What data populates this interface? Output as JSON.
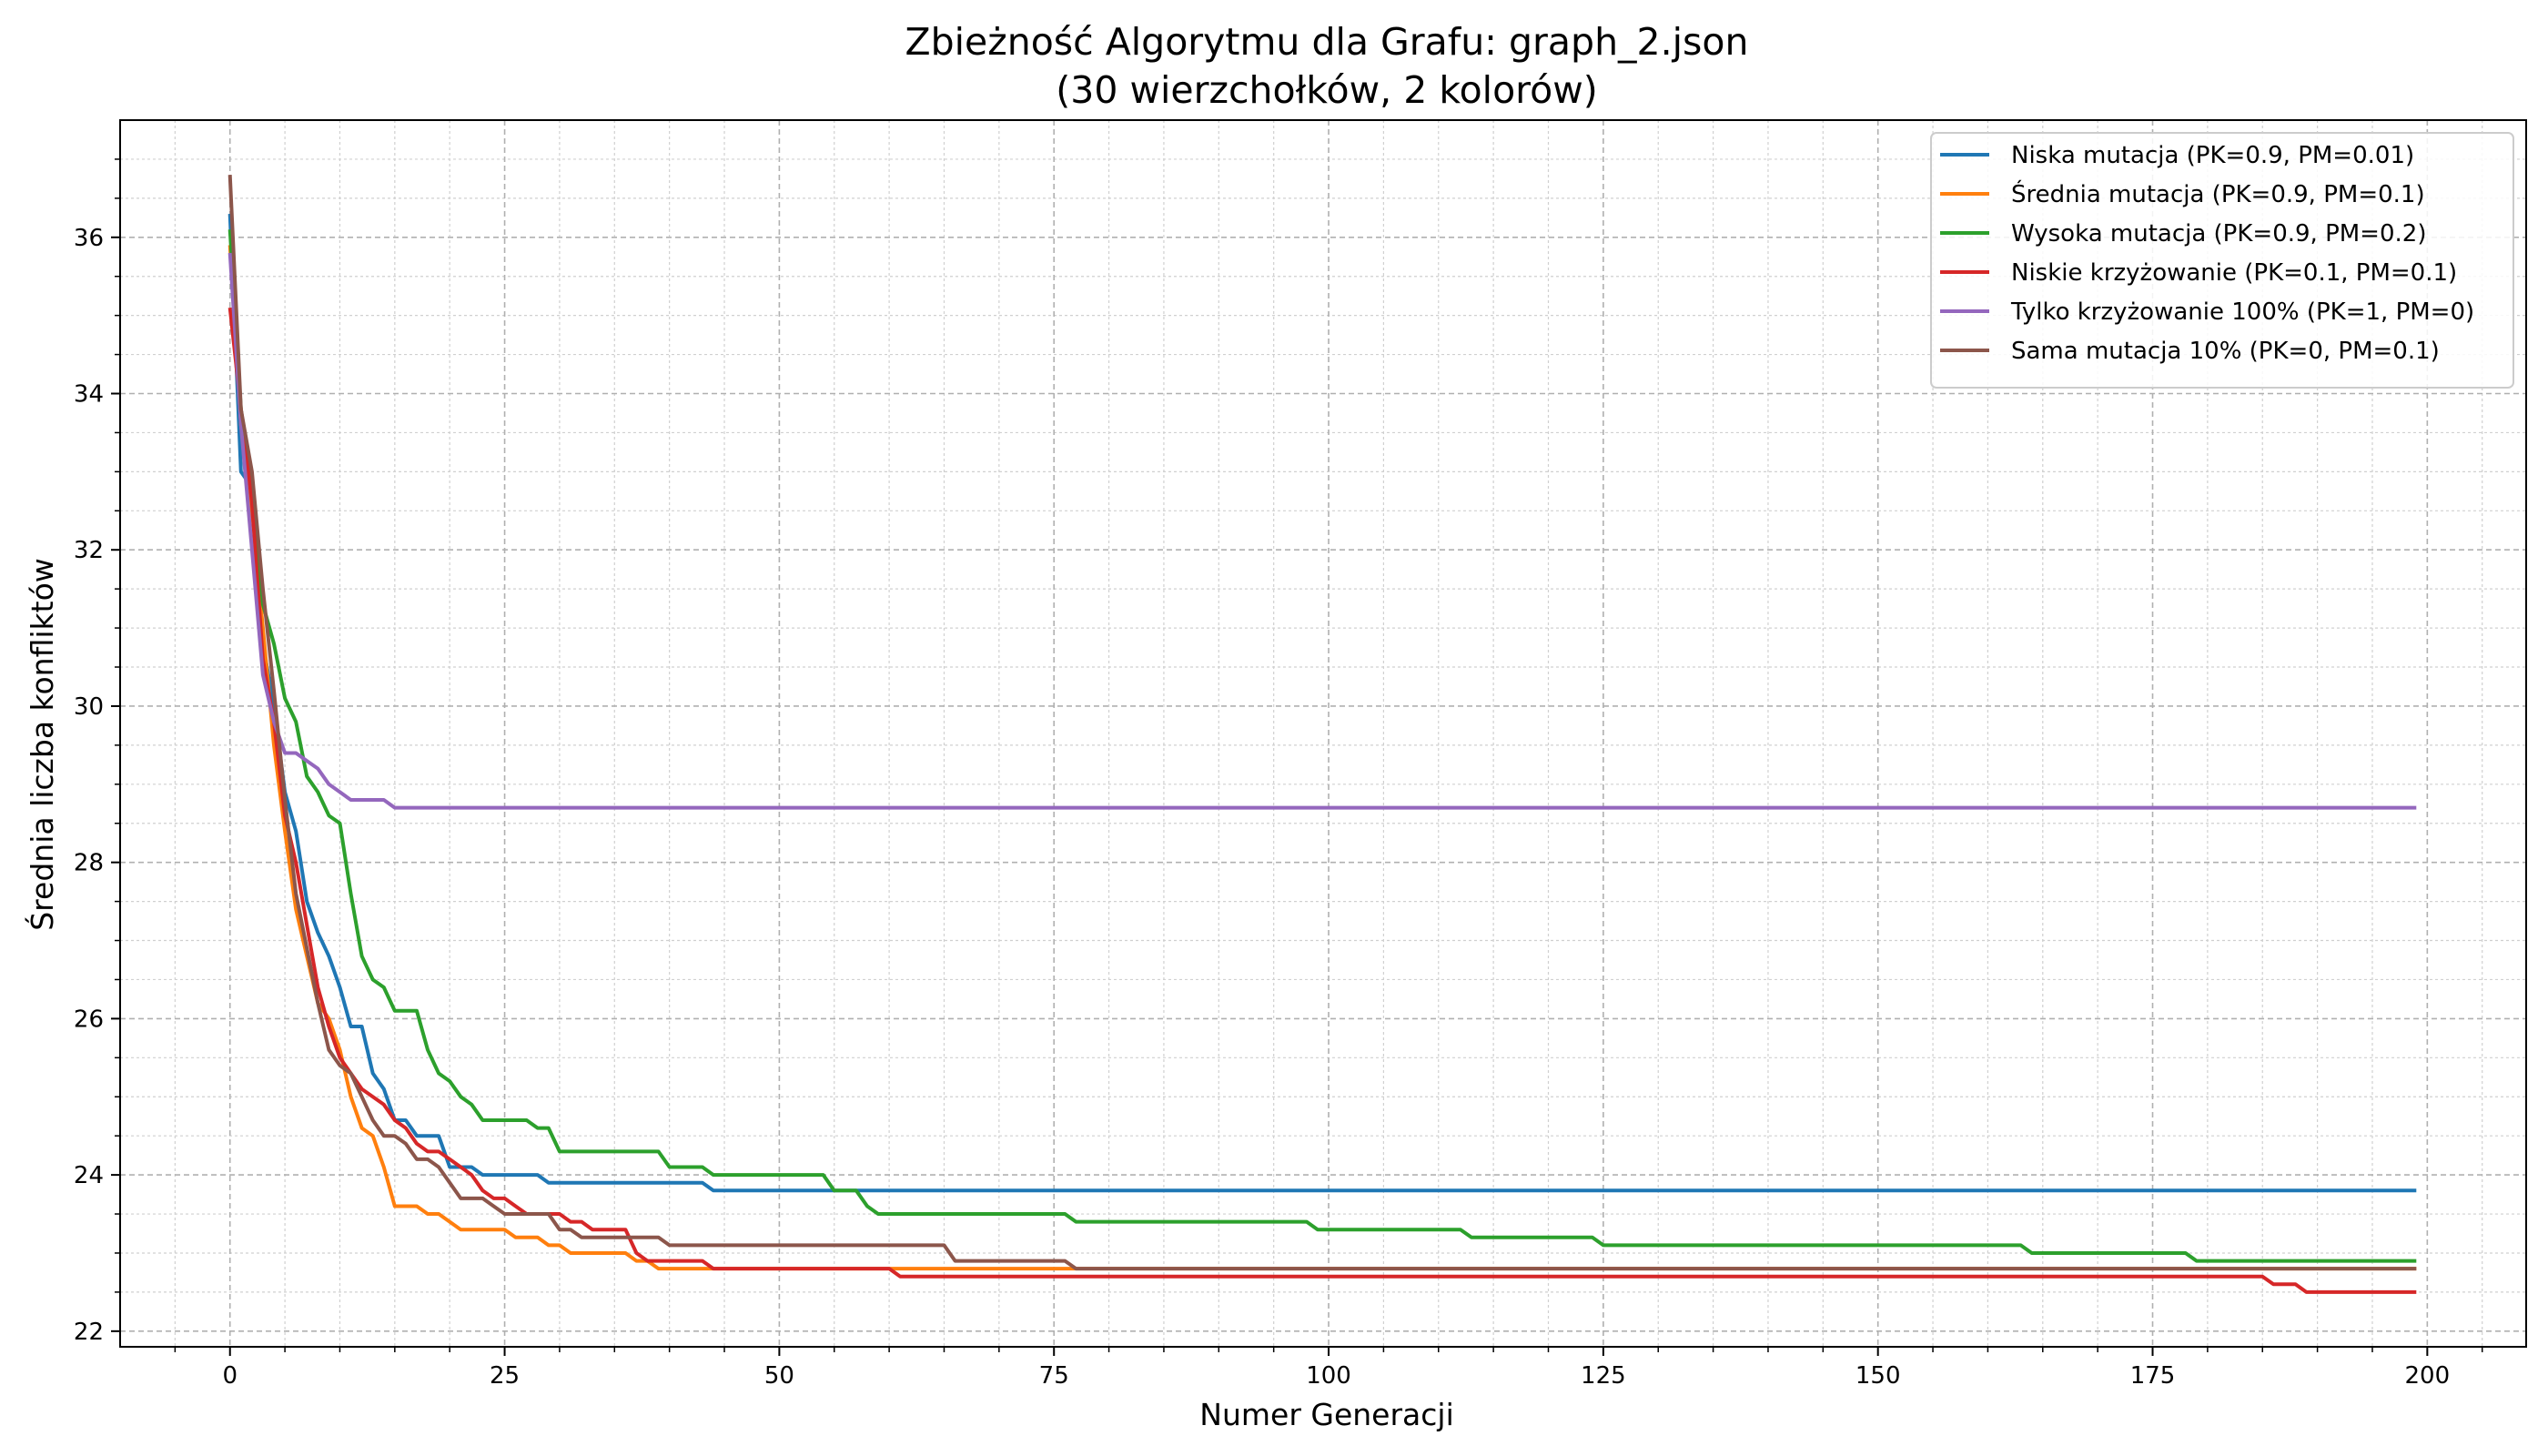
{
  "chart_data": {
    "type": "line",
    "title": "Zbieżność Algorytmu dla Grafu: graph_2.json",
    "subtitle": "(30 wierzchołków, 2 kolorów)",
    "xlabel": "Numer Generacji",
    "ylabel": "Średnia liczba konfliktów",
    "xlim": [
      -10,
      209
    ],
    "ylim": [
      21.8,
      37.5
    ],
    "xticks": [
      0,
      25,
      50,
      75,
      100,
      125,
      150,
      175,
      200
    ],
    "yticks": [
      22,
      24,
      26,
      28,
      30,
      32,
      34,
      36
    ],
    "grid": true,
    "minor_grid": true,
    "legend_position": "top-right",
    "series": [
      {
        "name": "Niska mutacja (PK=0.9, PM=0.01)",
        "color": "#1f77b4",
        "points": [
          [
            0,
            36.3
          ],
          [
            1,
            33.0
          ],
          [
            2,
            32.8
          ],
          [
            3,
            30.8
          ],
          [
            4,
            30.0
          ],
          [
            5,
            28.9
          ],
          [
            6,
            28.4
          ],
          [
            7,
            27.5
          ],
          [
            8,
            27.1
          ],
          [
            9,
            26.8
          ],
          [
            10,
            26.4
          ],
          [
            11,
            25.9
          ],
          [
            12,
            25.9
          ],
          [
            13,
            25.3
          ],
          [
            14,
            25.1
          ],
          [
            15,
            24.7
          ],
          [
            16,
            24.7
          ],
          [
            17,
            24.5
          ],
          [
            18,
            24.5
          ],
          [
            19,
            24.5
          ],
          [
            20,
            24.1
          ],
          [
            21,
            24.1
          ],
          [
            22,
            24.1
          ],
          [
            23,
            24.0
          ],
          [
            28,
            24.0
          ],
          [
            29,
            23.9
          ],
          [
            43,
            23.9
          ],
          [
            44,
            23.8
          ],
          [
            199,
            23.8
          ]
        ]
      },
      {
        "name": "Średnia mutacja (PK=0.9, PM=0.1)",
        "color": "#ff7f0e",
        "points": [
          [
            0,
            35.9
          ],
          [
            1,
            33.6
          ],
          [
            2,
            32.5
          ],
          [
            3,
            31.0
          ],
          [
            4,
            29.5
          ],
          [
            5,
            28.4
          ],
          [
            6,
            27.4
          ],
          [
            7,
            26.8
          ],
          [
            8,
            26.2
          ],
          [
            9,
            26.0
          ],
          [
            10,
            25.6
          ],
          [
            11,
            25.0
          ],
          [
            12,
            24.6
          ],
          [
            13,
            24.5
          ],
          [
            14,
            24.1
          ],
          [
            15,
            23.6
          ],
          [
            17,
            23.6
          ],
          [
            18,
            23.5
          ],
          [
            19,
            23.5
          ],
          [
            20,
            23.4
          ],
          [
            21,
            23.3
          ],
          [
            25,
            23.3
          ],
          [
            26,
            23.2
          ],
          [
            28,
            23.2
          ],
          [
            29,
            23.1
          ],
          [
            30,
            23.1
          ],
          [
            31,
            23.0
          ],
          [
            36,
            23.0
          ],
          [
            37,
            22.9
          ],
          [
            38,
            22.9
          ],
          [
            39,
            22.8
          ],
          [
            199,
            22.8
          ]
        ]
      },
      {
        "name": "Wysoka mutacja (PK=0.9, PM=0.2)",
        "color": "#2ca02c",
        "points": [
          [
            0,
            36.1
          ],
          [
            1,
            33.8
          ],
          [
            2,
            32.8
          ],
          [
            3,
            31.3
          ],
          [
            4,
            30.8
          ],
          [
            5,
            30.1
          ],
          [
            6,
            29.8
          ],
          [
            7,
            29.1
          ],
          [
            8,
            28.9
          ],
          [
            9,
            28.6
          ],
          [
            10,
            28.5
          ],
          [
            11,
            27.6
          ],
          [
            12,
            26.8
          ],
          [
            13,
            26.5
          ],
          [
            14,
            26.4
          ],
          [
            15,
            26.1
          ],
          [
            17,
            26.1
          ],
          [
            18,
            25.6
          ],
          [
            19,
            25.3
          ],
          [
            20,
            25.2
          ],
          [
            21,
            25.0
          ],
          [
            22,
            24.9
          ],
          [
            23,
            24.7
          ],
          [
            27,
            24.7
          ],
          [
            28,
            24.6
          ],
          [
            29,
            24.6
          ],
          [
            30,
            24.3
          ],
          [
            39,
            24.3
          ],
          [
            40,
            24.1
          ],
          [
            43,
            24.1
          ],
          [
            44,
            24.0
          ],
          [
            54,
            24.0
          ],
          [
            55,
            23.8
          ],
          [
            57,
            23.8
          ],
          [
            58,
            23.6
          ],
          [
            59,
            23.5
          ],
          [
            76,
            23.5
          ],
          [
            77,
            23.4
          ],
          [
            98,
            23.4
          ],
          [
            99,
            23.3
          ],
          [
            112,
            23.3
          ],
          [
            113,
            23.2
          ],
          [
            124,
            23.2
          ],
          [
            125,
            23.1
          ],
          [
            163,
            23.1
          ],
          [
            164,
            23.0
          ],
          [
            178,
            23.0
          ],
          [
            179,
            22.9
          ],
          [
            199,
            22.9
          ]
        ]
      },
      {
        "name": "Niskie krzyżowanie (PK=0.1, PM=0.1)",
        "color": "#d62728",
        "points": [
          [
            0,
            35.1
          ],
          [
            1,
            33.8
          ],
          [
            2,
            32.6
          ],
          [
            3,
            30.6
          ],
          [
            4,
            29.8
          ],
          [
            5,
            28.6
          ],
          [
            6,
            28.0
          ],
          [
            7,
            27.2
          ],
          [
            8,
            26.4
          ],
          [
            9,
            25.9
          ],
          [
            10,
            25.5
          ],
          [
            11,
            25.3
          ],
          [
            12,
            25.1
          ],
          [
            13,
            25.0
          ],
          [
            14,
            24.9
          ],
          [
            15,
            24.7
          ],
          [
            16,
            24.6
          ],
          [
            17,
            24.4
          ],
          [
            18,
            24.3
          ],
          [
            19,
            24.3
          ],
          [
            20,
            24.2
          ],
          [
            21,
            24.1
          ],
          [
            22,
            24.0
          ],
          [
            23,
            23.8
          ],
          [
            24,
            23.7
          ],
          [
            25,
            23.7
          ],
          [
            26,
            23.6
          ],
          [
            27,
            23.5
          ],
          [
            30,
            23.5
          ],
          [
            31,
            23.4
          ],
          [
            32,
            23.4
          ],
          [
            33,
            23.3
          ],
          [
            36,
            23.3
          ],
          [
            37,
            23.0
          ],
          [
            38,
            22.9
          ],
          [
            43,
            22.9
          ],
          [
            44,
            22.8
          ],
          [
            60,
            22.8
          ],
          [
            61,
            22.7
          ],
          [
            185,
            22.7
          ],
          [
            186,
            22.6
          ],
          [
            188,
            22.6
          ],
          [
            189,
            22.5
          ],
          [
            199,
            22.5
          ]
        ]
      },
      {
        "name": "Tylko krzyżowanie 100% (PK=1, PM=0)",
        "color": "#9467bd",
        "points": [
          [
            0,
            35.8
          ],
          [
            1,
            33.6
          ],
          [
            2,
            32.0
          ],
          [
            3,
            30.4
          ],
          [
            4,
            29.8
          ],
          [
            5,
            29.4
          ],
          [
            6,
            29.4
          ],
          [
            7,
            29.3
          ],
          [
            8,
            29.2
          ],
          [
            9,
            29.0
          ],
          [
            10,
            28.9
          ],
          [
            11,
            28.8
          ],
          [
            14,
            28.8
          ],
          [
            15,
            28.7
          ],
          [
            199,
            28.7
          ]
        ]
      },
      {
        "name": "Sama mutacja 10% (PK=0, PM=0.1)",
        "color": "#8c564b",
        "points": [
          [
            0,
            36.8
          ],
          [
            1,
            33.8
          ],
          [
            2,
            33.0
          ],
          [
            3,
            31.5
          ],
          [
            4,
            30.2
          ],
          [
            5,
            28.8
          ],
          [
            6,
            27.6
          ],
          [
            7,
            26.9
          ],
          [
            8,
            26.2
          ],
          [
            9,
            25.6
          ],
          [
            10,
            25.4
          ],
          [
            11,
            25.3
          ],
          [
            12,
            25.0
          ],
          [
            13,
            24.7
          ],
          [
            14,
            24.5
          ],
          [
            15,
            24.5
          ],
          [
            16,
            24.4
          ],
          [
            17,
            24.2
          ],
          [
            18,
            24.2
          ],
          [
            19,
            24.1
          ],
          [
            20,
            23.9
          ],
          [
            21,
            23.7
          ],
          [
            23,
            23.7
          ],
          [
            24,
            23.6
          ],
          [
            25,
            23.5
          ],
          [
            29,
            23.5
          ],
          [
            30,
            23.3
          ],
          [
            31,
            23.3
          ],
          [
            32,
            23.2
          ],
          [
            39,
            23.2
          ],
          [
            40,
            23.1
          ],
          [
            65,
            23.1
          ],
          [
            66,
            22.9
          ],
          [
            76,
            22.9
          ],
          [
            77,
            22.8
          ],
          [
            199,
            22.8
          ]
        ]
      }
    ]
  }
}
